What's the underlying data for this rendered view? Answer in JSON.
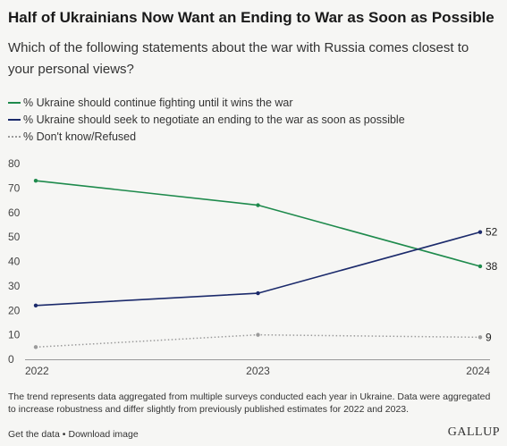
{
  "header": {
    "title": "Half of Ukrainians Now Want an Ending to War as Soon as Possible",
    "subtitle": "Which of the following statements about the war with Russia comes closest to your personal views?"
  },
  "chart_data": {
    "type": "line",
    "x": [
      "2022",
      "2023",
      "2024"
    ],
    "ylim": [
      0,
      80
    ],
    "yticks": [
      0,
      10,
      20,
      30,
      40,
      50,
      60,
      70,
      80
    ],
    "grid": false,
    "legend_position": "top-left",
    "series": [
      {
        "name": "% Ukraine should continue fighting until it wins the war",
        "values": [
          73,
          63,
          38
        ],
        "color": "#1e8a4c",
        "style": "solid",
        "end_label": "38"
      },
      {
        "name": "% Ukraine should seek to negotiate an ending to the war as soon as possible",
        "values": [
          22,
          27,
          52
        ],
        "color": "#1b2a6b",
        "style": "solid",
        "end_label": "52"
      },
      {
        "name": "% Don't know/Refused",
        "values": [
          5,
          10,
          9
        ],
        "color": "#9a9a9a",
        "style": "dotted",
        "end_label": "9"
      }
    ]
  },
  "footnote": "The trend represents data aggregated from multiple surveys conducted each year in Ukraine. Data were aggregated to increase robustness and differ slightly from previously published estimates for 2022 and 2023.",
  "footer": {
    "get_data": "Get the data",
    "separator": "•",
    "download": "Download image",
    "logo": "GALLUP"
  }
}
